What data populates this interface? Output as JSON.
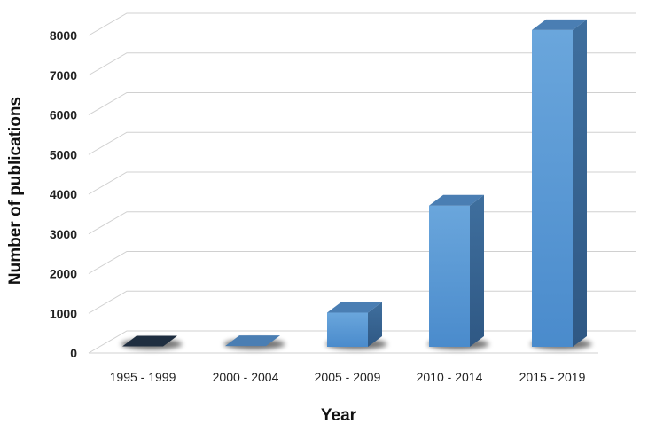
{
  "chart_data": {
    "type": "bar",
    "title": "",
    "xlabel": "Year",
    "ylabel": "Number of publications",
    "categories": [
      "1995 - 1999",
      "2000 - 2004",
      "2005 - 2009",
      "2010 - 2014",
      "2015 - 2019"
    ],
    "values": [
      10,
      20,
      860,
      3560,
      7980
    ],
    "ylim": [
      0,
      8000
    ],
    "yticks": [
      "0",
      "1000",
      "2000",
      "3000",
      "4000",
      "5000",
      "6000",
      "7000",
      "8000"
    ],
    "grid": true,
    "legend": "none",
    "colors": {
      "bar_front": "#5b9bd5",
      "bar_side": "#3d6a96",
      "bar_top": "#4a7eb3",
      "bar_first_top": "#1f2e40",
      "grid": "#d0d0d0",
      "shadow": "#000000"
    }
  }
}
